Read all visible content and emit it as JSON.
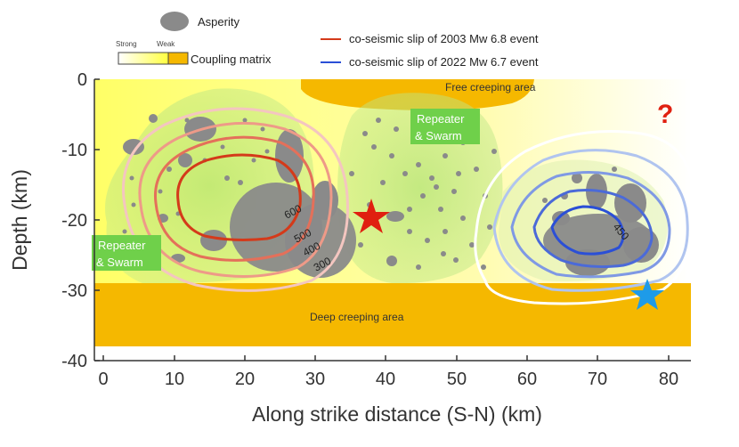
{
  "legend": {
    "asperity": "Asperity",
    "strong": "Strong",
    "weak": "Weak",
    "coupling": "Coupling matrix",
    "slip_2003": "co-seismic slip of 2003 Mw 6.8 event",
    "slip_2022": "co-seismic slip of 2022 Mw 6.7 event"
  },
  "labels": {
    "free_creeping": "Free creeping area",
    "deep_creeping": "Deep creeping area",
    "repeater_line1": "Repeater",
    "repeater_line2": "& Swarm",
    "question": "?"
  },
  "contours_2003": [
    "600",
    "500",
    "400",
    "300"
  ],
  "contours_2022": [
    "450"
  ],
  "axes": {
    "xlabel": "Along strike distance (S-N) (km)",
    "ylabel": "Depth (km)",
    "xticks": [
      "0",
      "10",
      "20",
      "30",
      "40",
      "50",
      "60",
      "70",
      "80"
    ],
    "yticks": [
      "0",
      "-10",
      "-20",
      "-30",
      "-40"
    ]
  },
  "colors": {
    "coupling_strong": "#ffff80",
    "coupling_weak": "#f5b800",
    "creeping": "#f5b800",
    "repeater_zone": "#9be06a",
    "asperity": "#8a8a8a",
    "slip_2003": "#d43a1a",
    "slip_2022": "#2b4fd6",
    "star_2003": "#e02010",
    "star_2022": "#1e9be8",
    "question": "#e02010"
  }
}
